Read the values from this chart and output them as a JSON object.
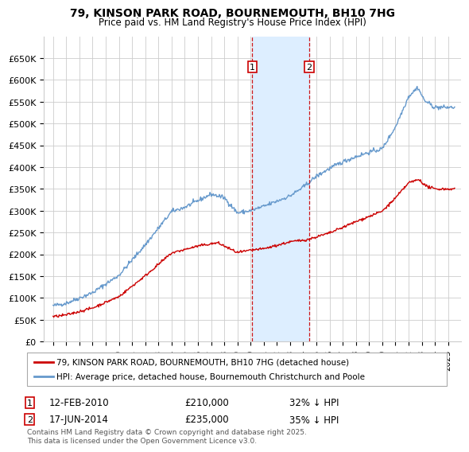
{
  "title": "79, KINSON PARK ROAD, BOURNEMOUTH, BH10 7HG",
  "subtitle": "Price paid vs. HM Land Registry's House Price Index (HPI)",
  "ylim": [
    0,
    700000
  ],
  "yticks": [
    0,
    50000,
    100000,
    150000,
    200000,
    250000,
    300000,
    350000,
    400000,
    450000,
    500000,
    550000,
    600000,
    650000
  ],
  "ytick_labels": [
    "£0",
    "£50K",
    "£100K",
    "£150K",
    "£200K",
    "£250K",
    "£300K",
    "£350K",
    "£400K",
    "£450K",
    "£500K",
    "£550K",
    "£600K",
    "£650K"
  ],
  "xlim": [
    1994.3,
    2026.0
  ],
  "xtick_years": [
    1995,
    1996,
    1997,
    1998,
    1999,
    2000,
    2001,
    2002,
    2003,
    2004,
    2005,
    2006,
    2007,
    2008,
    2009,
    2010,
    2011,
    2012,
    2013,
    2014,
    2015,
    2016,
    2017,
    2018,
    2019,
    2020,
    2021,
    2022,
    2023,
    2024,
    2025
  ],
  "sale1_date": "12-FEB-2010",
  "sale1_price": "£210,000",
  "sale1_pct": "32% ↓ HPI",
  "sale1_x": 2010.12,
  "sale2_date": "17-JUN-2014",
  "sale2_price": "£235,000",
  "sale2_pct": "35% ↓ HPI",
  "sale2_x": 2014.46,
  "legend_line1": "79, KINSON PARK ROAD, BOURNEMOUTH, BH10 7HG (detached house)",
  "legend_line2": "HPI: Average price, detached house, Bournemouth Christchurch and Poole",
  "footnote": "Contains HM Land Registry data © Crown copyright and database right 2025.\nThis data is licensed under the Open Government Licence v3.0.",
  "line_red_color": "#cc0000",
  "line_blue_color": "#6699cc",
  "shade_color": "#ddeeff",
  "background_color": "#ffffff",
  "grid_color": "#cccccc",
  "marker_y": 630000
}
